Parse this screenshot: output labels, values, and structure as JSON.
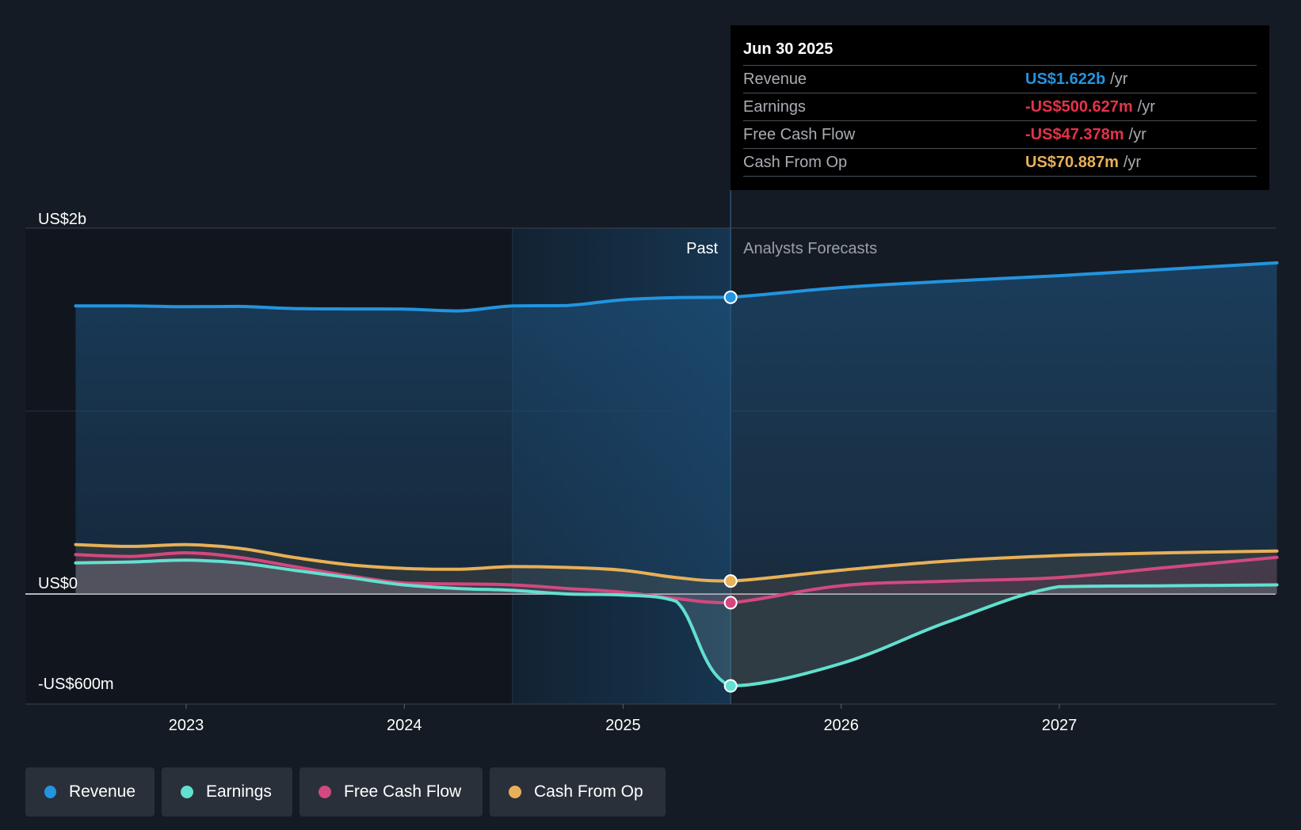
{
  "colors": {
    "background": "#151b24",
    "revenue": "#2394df",
    "earnings": "#62e0d0",
    "free_cash_flow": "#d2497f",
    "cash_from_op": "#e8b058",
    "negative": "#e3344a",
    "forecast_label": "#9aa0a6"
  },
  "tooltip": {
    "date": "Jun 30 2025",
    "rows": [
      {
        "label": "Revenue",
        "value": "US$1.622b",
        "unit": "/yr"
      },
      {
        "label": "Earnings",
        "value": "-US$500.627m",
        "unit": "/yr"
      },
      {
        "label": "Free Cash Flow",
        "value": "-US$47.378m",
        "unit": "/yr"
      },
      {
        "label": "Cash From Op",
        "value": "US$70.887m",
        "unit": "/yr"
      }
    ]
  },
  "labels": {
    "past": "Past",
    "forecast": "Analysts Forecasts"
  },
  "legend": [
    {
      "label": "Revenue",
      "icon": "revenue-dot-icon"
    },
    {
      "label": "Earnings",
      "icon": "earnings-dot-icon"
    },
    {
      "label": "Free Cash Flow",
      "icon": "free-cash-flow-dot-icon"
    },
    {
      "label": "Cash From Op",
      "icon": "cash-from-op-dot-icon"
    }
  ],
  "chart_data": {
    "type": "line",
    "title": "",
    "xlabel": "",
    "ylabel": "",
    "x_ticks": [
      "2023",
      "2024",
      "2025",
      "2026",
      "2027"
    ],
    "y_tick_labels": [
      "US$2b",
      "US$0",
      "-US$600m"
    ],
    "ylim": [
      -600,
      2000
    ],
    "xlim": [
      "2022-04",
      "2027-12-31"
    ],
    "divider_date": "2025-06-30",
    "past_highlight_start": "2024-06-30",
    "grid": true,
    "legend_position": "bottom-left",
    "series": [
      {
        "name": "Revenue",
        "key": "revenue",
        "points": [
          [
            "2022-06-30",
            1575
          ],
          [
            "2022-09-30",
            1575
          ],
          [
            "2022-12-31",
            1570
          ],
          [
            "2023-03-31",
            1572
          ],
          [
            "2023-06-30",
            1560
          ],
          [
            "2023-09-30",
            1558
          ],
          [
            "2023-12-31",
            1557
          ],
          [
            "2024-03-31",
            1547
          ],
          [
            "2024-06-30",
            1575
          ],
          [
            "2024-09-30",
            1577
          ],
          [
            "2024-12-31",
            1608
          ],
          [
            "2025-03-31",
            1620
          ],
          [
            "2025-06-30",
            1622
          ],
          [
            "2025-12-31",
            1675
          ],
          [
            "2026-06-30",
            1710
          ],
          [
            "2026-12-31",
            1740
          ],
          [
            "2027-06-30",
            1775
          ],
          [
            "2027-12-31",
            1810
          ]
        ]
      },
      {
        "name": "Earnings",
        "key": "earnings",
        "points": [
          [
            "2022-06-30",
            170
          ],
          [
            "2022-09-30",
            175
          ],
          [
            "2022-12-31",
            185
          ],
          [
            "2023-03-31",
            170
          ],
          [
            "2023-06-30",
            130
          ],
          [
            "2023-09-30",
            90
          ],
          [
            "2023-12-31",
            50
          ],
          [
            "2024-03-31",
            30
          ],
          [
            "2024-06-30",
            20
          ],
          [
            "2024-09-30",
            0
          ],
          [
            "2024-12-31",
            -5
          ],
          [
            "2025-03-31",
            -40
          ],
          [
            "2025-06-30",
            -500.6
          ],
          [
            "2025-12-31",
            -380
          ],
          [
            "2026-06-30",
            -150
          ],
          [
            "2026-12-31",
            40
          ],
          [
            "2027-06-30",
            45
          ],
          [
            "2027-12-31",
            50
          ]
        ]
      },
      {
        "name": "Free Cash Flow",
        "key": "free_cash_flow",
        "points": [
          [
            "2022-06-30",
            215
          ],
          [
            "2022-09-30",
            205
          ],
          [
            "2022-12-31",
            225
          ],
          [
            "2023-03-31",
            200
          ],
          [
            "2023-06-30",
            150
          ],
          [
            "2023-09-30",
            100
          ],
          [
            "2023-12-31",
            60
          ],
          [
            "2024-03-31",
            55
          ],
          [
            "2024-06-30",
            50
          ],
          [
            "2024-09-30",
            30
          ],
          [
            "2024-12-31",
            10
          ],
          [
            "2025-03-31",
            -25
          ],
          [
            "2025-06-30",
            -47.4
          ],
          [
            "2025-12-31",
            45
          ],
          [
            "2026-06-30",
            70
          ],
          [
            "2026-12-31",
            90
          ],
          [
            "2027-06-30",
            145
          ],
          [
            "2027-12-31",
            200
          ]
        ]
      },
      {
        "name": "Cash From Op",
        "key": "cash_from_op",
        "points": [
          [
            "2022-06-30",
            270
          ],
          [
            "2022-09-30",
            260
          ],
          [
            "2022-12-31",
            270
          ],
          [
            "2023-03-31",
            250
          ],
          [
            "2023-06-30",
            200
          ],
          [
            "2023-09-30",
            160
          ],
          [
            "2023-12-31",
            140
          ],
          [
            "2024-03-31",
            135
          ],
          [
            "2024-06-30",
            150
          ],
          [
            "2024-09-30",
            145
          ],
          [
            "2024-12-31",
            130
          ],
          [
            "2025-03-31",
            90
          ],
          [
            "2025-06-30",
            70.9
          ],
          [
            "2025-12-31",
            130
          ],
          [
            "2026-06-30",
            180
          ],
          [
            "2026-12-31",
            210
          ],
          [
            "2027-06-30",
            225
          ],
          [
            "2027-12-31",
            235
          ]
        ]
      }
    ]
  }
}
